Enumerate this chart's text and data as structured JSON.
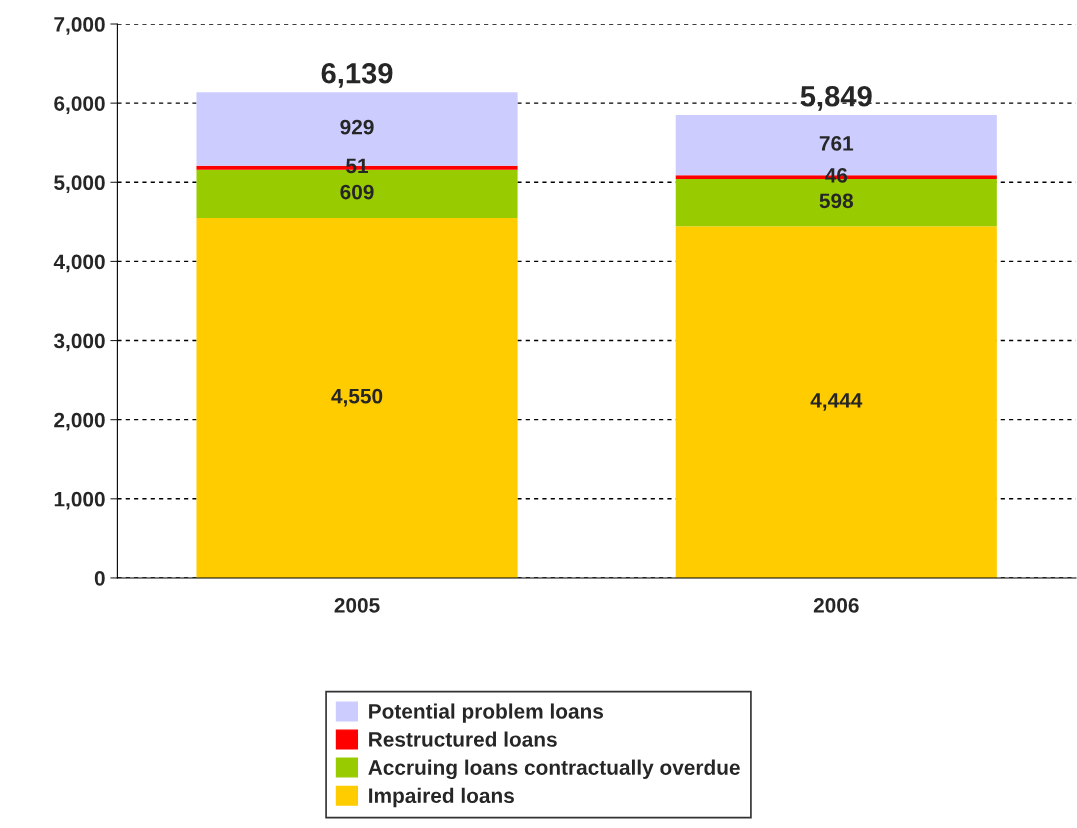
{
  "chart_data": {
    "type": "bar",
    "stacked": true,
    "categories": [
      "2005",
      "2006"
    ],
    "series": [
      {
        "name": "Impaired loans",
        "color": "#ffcc00",
        "values": [
          4550,
          4444
        ],
        "value_labels": [
          "4,550",
          "4,444"
        ]
      },
      {
        "name": "Accruing loans contractually overdue",
        "color": "#99cc00",
        "values": [
          609,
          598
        ],
        "value_labels": [
          "609",
          "598"
        ]
      },
      {
        "name": "Restructured loans",
        "color": "#ff0000",
        "values": [
          51,
          46
        ],
        "value_labels": [
          "51",
          "46"
        ]
      },
      {
        "name": "Potential problem loans",
        "color": "#ccccff",
        "values": [
          929,
          761
        ],
        "value_labels": [
          "929",
          "761"
        ]
      }
    ],
    "totals": [
      "6,139",
      "5,849"
    ],
    "ylim": [
      0,
      7000
    ],
    "yticks": [
      0,
      {
        "value": 1000,
        "label": "1,000"
      },
      {
        "value": 2000,
        "label": "2,000"
      },
      {
        "value": 3000,
        "label": "3,000"
      },
      {
        "value": 4000,
        "label": "4,000"
      },
      {
        "value": 5000,
        "label": "5,000"
      },
      {
        "value": 6000,
        "label": "6,000"
      },
      {
        "value": 7000,
        "label": "7,000"
      }
    ],
    "grid": "y",
    "legend": "bottom"
  }
}
